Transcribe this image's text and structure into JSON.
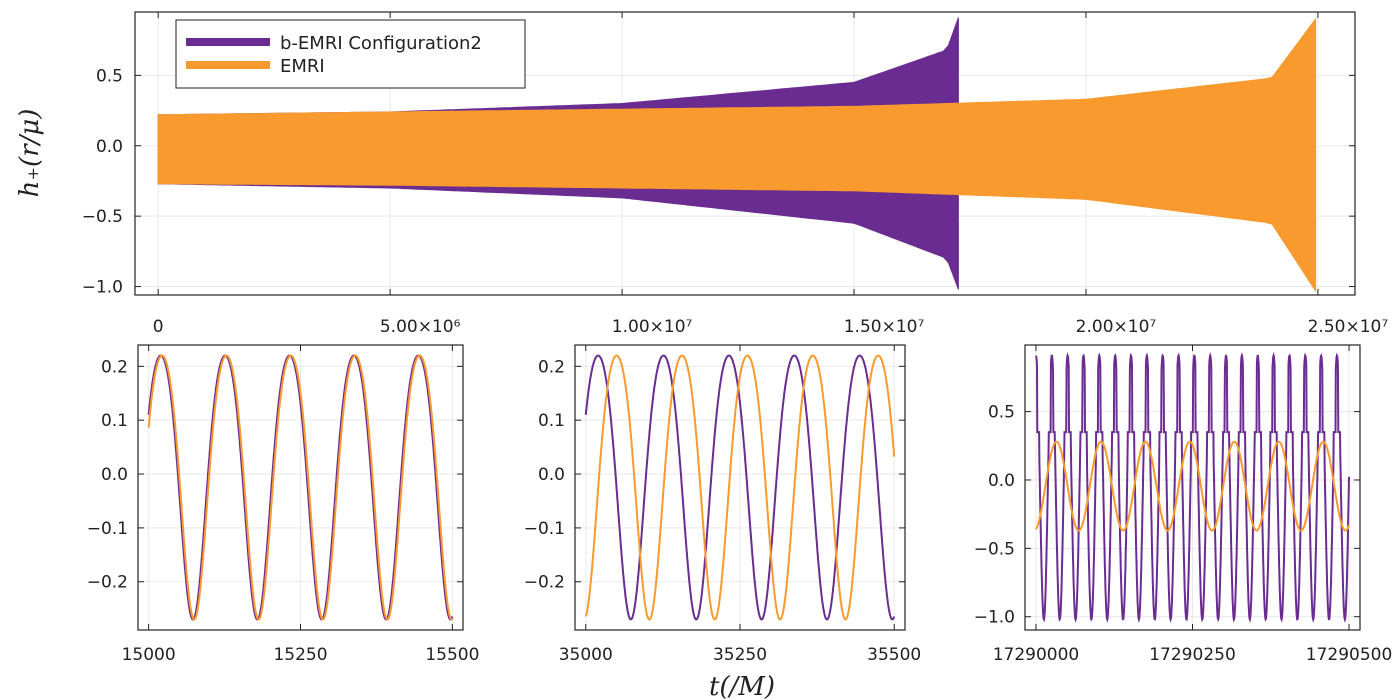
{
  "colors": {
    "config2": "#6a2c91",
    "emri": "#f89a2e",
    "frame": "#222222",
    "grid": "#e9e9e9"
  },
  "top": {
    "ylabel": "h₊(r/μ)",
    "x_ticks": [
      "0",
      "5.00×10⁶",
      "1.00×10⁷",
      "1.50×10⁷",
      "2.00×10⁷",
      "2.50×10⁷"
    ],
    "x_tick_values": [
      0,
      5000000,
      10000000,
      15000000,
      20000000,
      25000000
    ],
    "y_ticks": [
      "0.5",
      "0.0",
      "−0.5",
      "−1.0"
    ],
    "y_tick_values": [
      0.5,
      0.0,
      -0.5,
      -1.0
    ],
    "xlim": [
      -500000,
      25800000
    ],
    "ylim": [
      -1.06,
      0.95
    ],
    "legend": [
      "b-EMRI Configuration2",
      "EMRI"
    ]
  },
  "bottom": {
    "xlabel": "t(/M)",
    "panels": [
      {
        "x_ticks": [
          "15000",
          "15250",
          "15500"
        ],
        "x_tick_values": [
          15000,
          15250,
          15500
        ],
        "y_ticks": [
          "0.2",
          "0.1",
          "0.0",
          "−0.1",
          "−0.2"
        ],
        "y_tick_values": [
          0.2,
          0.1,
          0.0,
          -0.1,
          -0.2
        ]
      },
      {
        "x_ticks": [
          "35000",
          "35250",
          "35500"
        ],
        "x_tick_values": [
          35000,
          35250,
          35500
        ],
        "y_ticks": [
          "0.2",
          "0.1",
          "0.0",
          "−0.1",
          "−0.2"
        ],
        "y_tick_values": [
          0.2,
          0.1,
          0.0,
          -0.1,
          -0.2
        ]
      },
      {
        "x_ticks": [
          "17290000",
          "17290250",
          "17290500"
        ],
        "x_tick_values": [
          17290000,
          17290250,
          17290500
        ],
        "y_ticks": [
          "0.5",
          "0.0",
          "−0.5",
          "−1.0"
        ],
        "y_tick_values": [
          0.5,
          0.0,
          -0.5,
          -1.0
        ]
      }
    ]
  },
  "chart_data": [
    {
      "type": "area",
      "title": "",
      "xlabel": "",
      "ylabel": "h₊(r/μ)",
      "xlim": [
        -500000,
        25800000
      ],
      "ylim": [
        -1.06,
        0.95
      ],
      "legend_position": "top-left",
      "series": [
        {
          "name": "b-EMRI Configuration2",
          "x": [
            0,
            5000000,
            10000000,
            15000000,
            17000000,
            17250000
          ],
          "upper": [
            0.22,
            0.24,
            0.3,
            0.45,
            0.68,
            0.91
          ],
          "lower": [
            -0.27,
            -0.3,
            -0.37,
            -0.55,
            -0.8,
            -1.02
          ]
        },
        {
          "name": "EMRI",
          "x": [
            0,
            5000000,
            10000000,
            15000000,
            20000000,
            24000000,
            24950000
          ],
          "upper": [
            0.22,
            0.24,
            0.26,
            0.28,
            0.33,
            0.48,
            0.9
          ],
          "lower": [
            -0.27,
            -0.28,
            -0.3,
            -0.32,
            -0.38,
            -0.55,
            -1.03
          ]
        }
      ]
    },
    {
      "type": "line",
      "xlim": [
        15000,
        15500
      ],
      "ylim": [
        -0.27,
        0.22
      ],
      "series": [
        {
          "name": "b-EMRI Configuration2",
          "period": 106,
          "x_first_peak": 15020,
          "max": 0.22,
          "min": -0.27
        },
        {
          "name": "EMRI",
          "period": 106,
          "x_first_peak": 15022,
          "max": 0.22,
          "min": -0.27
        }
      ]
    },
    {
      "type": "line",
      "xlim": [
        35000,
        35500
      ],
      "ylim": [
        -0.27,
        0.22
      ],
      "series": [
        {
          "name": "b-EMRI Configuration2",
          "period": 106,
          "x_first_peak": 35020,
          "max": 0.22,
          "min": -0.27
        },
        {
          "name": "EMRI",
          "period": 106,
          "x_first_peak": 35050,
          "max": 0.22,
          "min": -0.27
        }
      ]
    },
    {
      "type": "line",
      "xlim": [
        17290000,
        17290500
      ],
      "ylim": [
        -1.02,
        0.91
      ],
      "series": [
        {
          "name": "b-EMRI Configuration2",
          "period": 25.3,
          "max": 0.91,
          "min": -1.02,
          "shoulder": 0.35
        },
        {
          "name": "EMRI",
          "period": 71,
          "max": 0.28,
          "min": -0.37
        }
      ]
    }
  ]
}
